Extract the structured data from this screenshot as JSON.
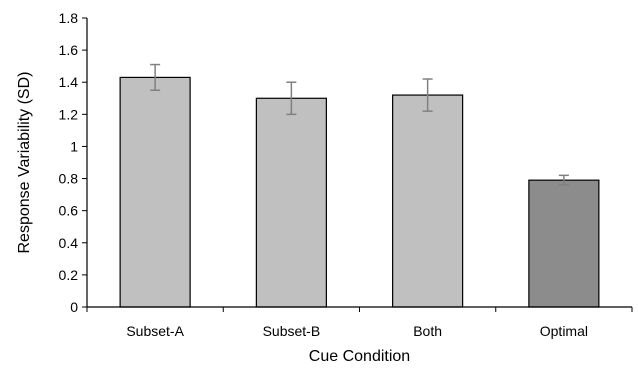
{
  "chart_data": {
    "type": "bar",
    "xlabel": "Cue Condition",
    "ylabel": "Response Variability (SD)",
    "categories": [
      "Subset-A",
      "Subset-B",
      "Both",
      "Optimal"
    ],
    "values": [
      1.43,
      1.3,
      1.32,
      0.79
    ],
    "errors": [
      0.08,
      0.1,
      0.1,
      0.03
    ],
    "bar_colors": [
      "#c0c0c0",
      "#c0c0c0",
      "#c0c0c0",
      "#8c8c8c"
    ],
    "error_color": "#808080",
    "ylim": [
      0,
      1.8
    ],
    "yticks": [
      0,
      0.2,
      0.4,
      0.6,
      0.8,
      1,
      1.2,
      1.4,
      1.6,
      1.8
    ],
    "ytick_labels": [
      "0",
      "0.2",
      "0.4",
      "0.6",
      "0.8",
      "1",
      "1.2",
      "1.4",
      "1.6",
      "1.8"
    ],
    "grid": false,
    "legend": "none"
  }
}
